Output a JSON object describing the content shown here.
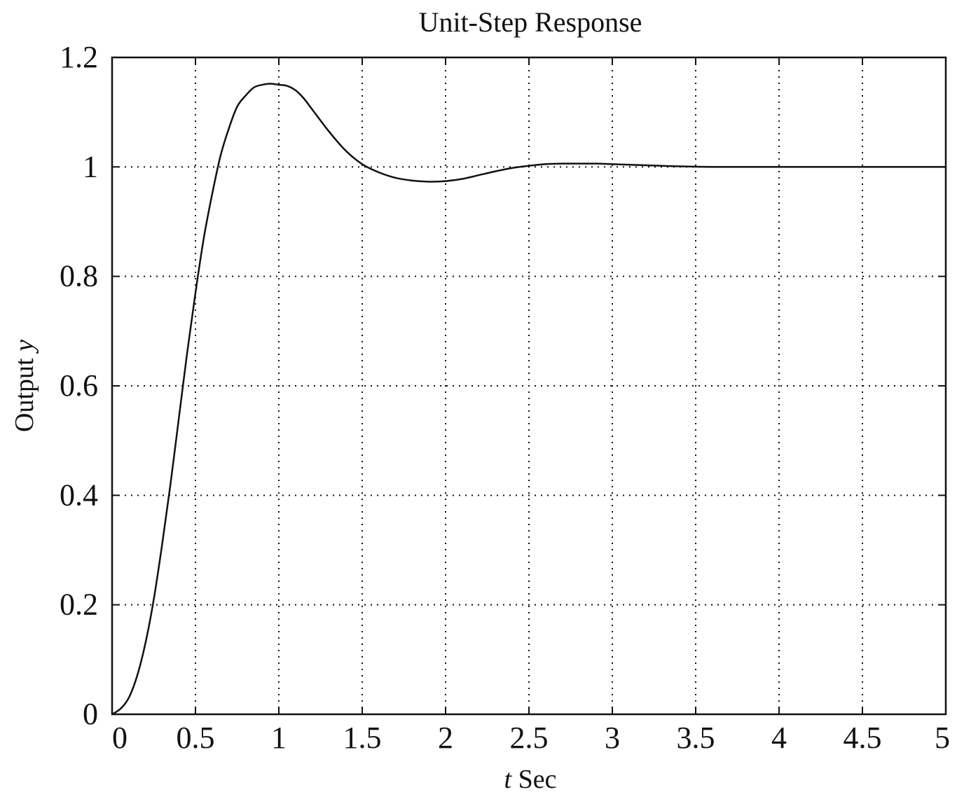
{
  "chart_data": {
    "type": "line",
    "title": "Unit-Step Response",
    "xlabel": {
      "italic": "t",
      "text": " Sec"
    },
    "ylabel": {
      "text": "Output ",
      "italic": "y"
    },
    "xlim": [
      0,
      5
    ],
    "ylim": [
      0,
      1.2
    ],
    "grid": true,
    "x_ticks": [
      "0",
      "0.5",
      "1",
      "1.5",
      "2",
      "2.5",
      "3",
      "3.5",
      "4",
      "4.5",
      "5"
    ],
    "y_ticks": [
      "0",
      "0.2",
      "0.4",
      "0.6",
      "0.8",
      "1",
      "1.2"
    ],
    "series": [
      {
        "x": [
          0,
          0.05,
          0.1,
          0.15,
          0.2,
          0.25,
          0.3,
          0.35,
          0.4,
          0.45,
          0.5,
          0.55,
          0.6,
          0.65,
          0.7,
          0.75,
          0.8,
          0.85,
          0.9,
          0.95,
          1.0,
          1.05,
          1.1,
          1.15,
          1.2,
          1.3,
          1.4,
          1.5,
          1.6,
          1.7,
          1.8,
          1.9,
          2.0,
          2.1,
          2.2,
          2.3,
          2.4,
          2.5,
          2.6,
          2.7,
          2.8,
          2.9,
          3.0,
          3.2,
          3.4,
          3.6,
          3.8,
          4.0,
          4.5,
          5.0
        ],
        "y": [
          0,
          0.01,
          0.03,
          0.07,
          0.13,
          0.21,
          0.31,
          0.42,
          0.54,
          0.66,
          0.77,
          0.87,
          0.95,
          1.02,
          1.07,
          1.11,
          1.13,
          1.145,
          1.15,
          1.152,
          1.15,
          1.148,
          1.14,
          1.125,
          1.105,
          1.065,
          1.03,
          1.005,
          0.99,
          0.98,
          0.975,
          0.973,
          0.974,
          0.978,
          0.985,
          0.992,
          0.998,
          1.002,
          1.005,
          1.006,
          1.006,
          1.006,
          1.005,
          1.003,
          1.001,
          1.0,
          1.0,
          1.0,
          1.0,
          1.0
        ]
      }
    ]
  }
}
